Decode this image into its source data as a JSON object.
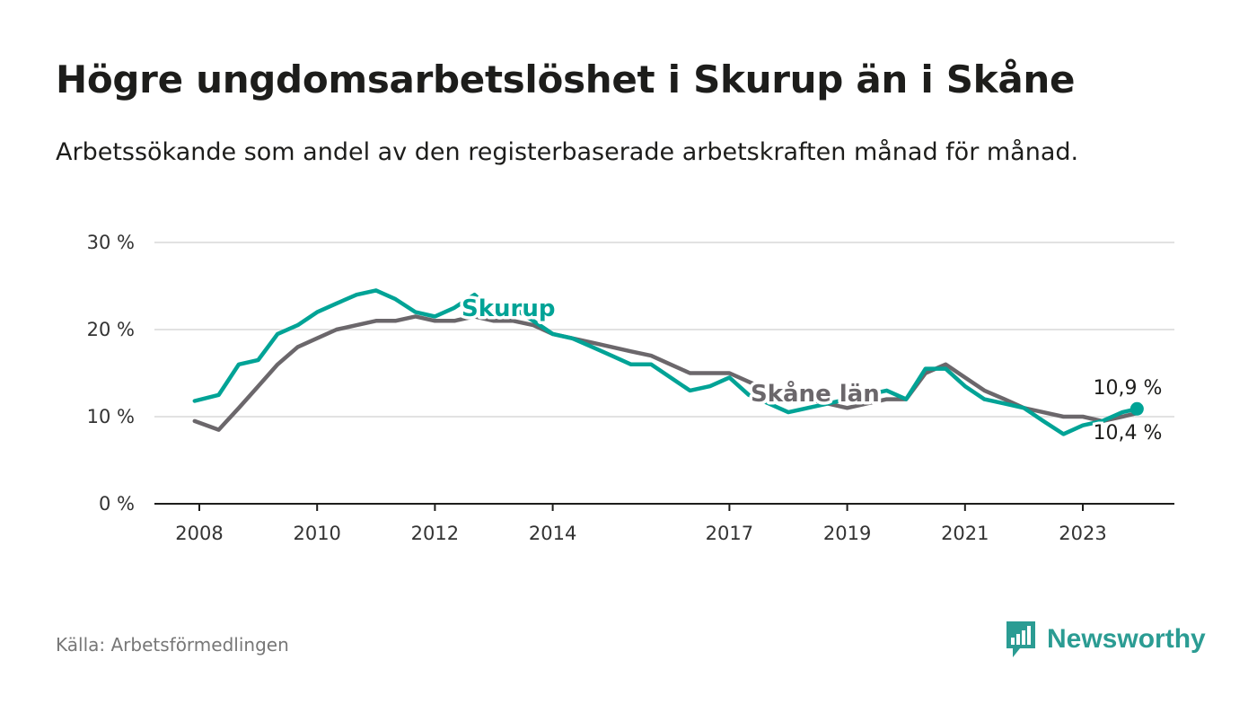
{
  "header": {
    "title": "Högre ungdomsarbetslöshet i Skurup än i Skåne",
    "subtitle": "Arbetssökande som andel av den registerbaserade arbetskraften månad för månad."
  },
  "footer": {
    "source": "Källa: Arbetsförmedlingen",
    "brand": "Newsworthy"
  },
  "colors": {
    "skurup": "#00a396",
    "skane": "#6b676b",
    "grid": "#d9d9d9",
    "axis": "#1d1d1b"
  },
  "chart_data": {
    "type": "line",
    "title": "Högre ungdomsarbetslöshet i Skurup än i Skåne",
    "ylim": [
      0,
      30
    ],
    "y_ticks": [
      0,
      10,
      20,
      30
    ],
    "y_tick_labels": [
      "0 %",
      "10 %",
      "20 %",
      "30 %"
    ],
    "x_range": [
      2007.92,
      2023.92
    ],
    "x_ticks": [
      2008,
      2010,
      2012,
      2014,
      2017,
      2019,
      2021,
      2023
    ],
    "x_tick_labels": [
      "2008",
      "2010",
      "2012",
      "2014",
      "2017",
      "2019",
      "2021",
      "2023"
    ],
    "grid": true,
    "series": [
      {
        "name": "Skurup",
        "label": "Skurup",
        "end_label": "10,9 %",
        "x": [
          2007.92,
          2008.33,
          2008.67,
          2009.0,
          2009.33,
          2009.67,
          2010.0,
          2010.33,
          2010.67,
          2011.0,
          2011.33,
          2011.67,
          2012.0,
          2012.33,
          2012.67,
          2013.0,
          2013.33,
          2013.67,
          2014.0,
          2014.33,
          2014.67,
          2015.0,
          2015.33,
          2015.67,
          2016.0,
          2016.33,
          2016.67,
          2017.0,
          2017.33,
          2017.67,
          2018.0,
          2018.33,
          2018.67,
          2019.0,
          2019.33,
          2019.67,
          2020.0,
          2020.33,
          2020.67,
          2021.0,
          2021.33,
          2021.67,
          2022.0,
          2022.33,
          2022.67,
          2023.0,
          2023.33,
          2023.67,
          2023.92
        ],
        "values": [
          11.8,
          12.5,
          16.0,
          16.5,
          19.5,
          20.5,
          22.0,
          23.0,
          24.0,
          24.5,
          23.5,
          22.0,
          21.5,
          22.5,
          24.0,
          22.0,
          22.5,
          21.0,
          19.5,
          19.0,
          18.0,
          17.0,
          16.0,
          16.0,
          14.5,
          13.0,
          13.5,
          14.5,
          12.5,
          11.5,
          10.5,
          11.0,
          11.5,
          12.0,
          12.5,
          13.0,
          12.0,
          15.5,
          15.5,
          13.5,
          12.0,
          11.5,
          11.0,
          9.5,
          8.0,
          9.0,
          9.5,
          10.5,
          10.9
        ]
      },
      {
        "name": "Skåne län",
        "label": "Skåne län",
        "end_label": "10,4 %",
        "x": [
          2007.92,
          2008.33,
          2008.67,
          2009.0,
          2009.33,
          2009.67,
          2010.0,
          2010.33,
          2010.67,
          2011.0,
          2011.33,
          2011.67,
          2012.0,
          2012.33,
          2012.67,
          2013.0,
          2013.33,
          2013.67,
          2014.0,
          2014.33,
          2014.67,
          2015.0,
          2015.33,
          2015.67,
          2016.0,
          2016.33,
          2016.67,
          2017.0,
          2017.33,
          2017.67,
          2018.0,
          2018.33,
          2018.67,
          2019.0,
          2019.33,
          2019.67,
          2020.0,
          2020.33,
          2020.67,
          2021.0,
          2021.33,
          2021.67,
          2022.0,
          2022.33,
          2022.67,
          2023.0,
          2023.33,
          2023.67,
          2023.92
        ],
        "values": [
          9.5,
          8.5,
          11.0,
          13.5,
          16.0,
          18.0,
          19.0,
          20.0,
          20.5,
          21.0,
          21.0,
          21.5,
          21.0,
          21.0,
          21.5,
          21.0,
          21.0,
          20.5,
          19.5,
          19.0,
          18.5,
          18.0,
          17.5,
          17.0,
          16.0,
          15.0,
          15.0,
          15.0,
          14.0,
          13.0,
          12.5,
          12.0,
          11.5,
          11.0,
          11.5,
          12.0,
          12.0,
          15.0,
          16.0,
          14.5,
          13.0,
          12.0,
          11.0,
          10.5,
          10.0,
          10.0,
          9.5,
          10.0,
          10.4
        ]
      }
    ]
  }
}
